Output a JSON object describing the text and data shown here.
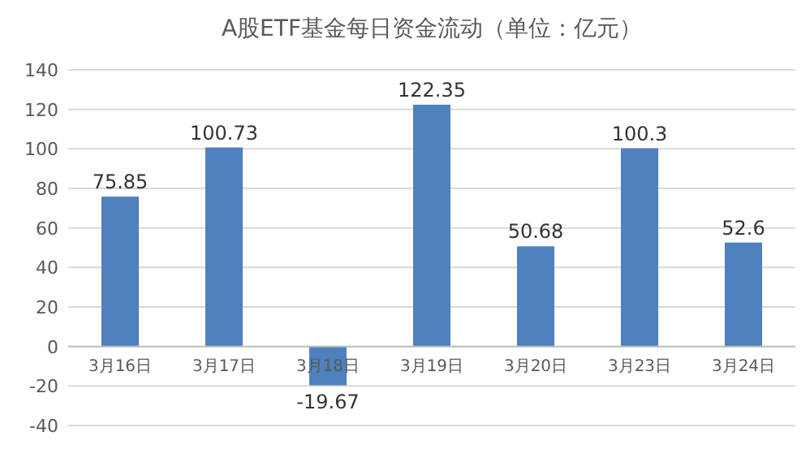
{
  "chart_data": {
    "type": "bar",
    "title": "A股ETF基金每日资金流动（单位：亿元）",
    "categories": [
      "3月16日",
      "3月17日",
      "3月18日",
      "3月19日",
      "3月20日",
      "3月23日",
      "3月24日"
    ],
    "values": [
      75.85,
      100.73,
      -19.67,
      122.35,
      50.68,
      100.3,
      52.6
    ],
    "color": "#4f81bd",
    "ylim": [
      -40,
      140
    ],
    "yticks": [
      -40,
      -20,
      0,
      20,
      40,
      60,
      80,
      100,
      120,
      140
    ],
    "grid": "y",
    "data_labels": true
  }
}
